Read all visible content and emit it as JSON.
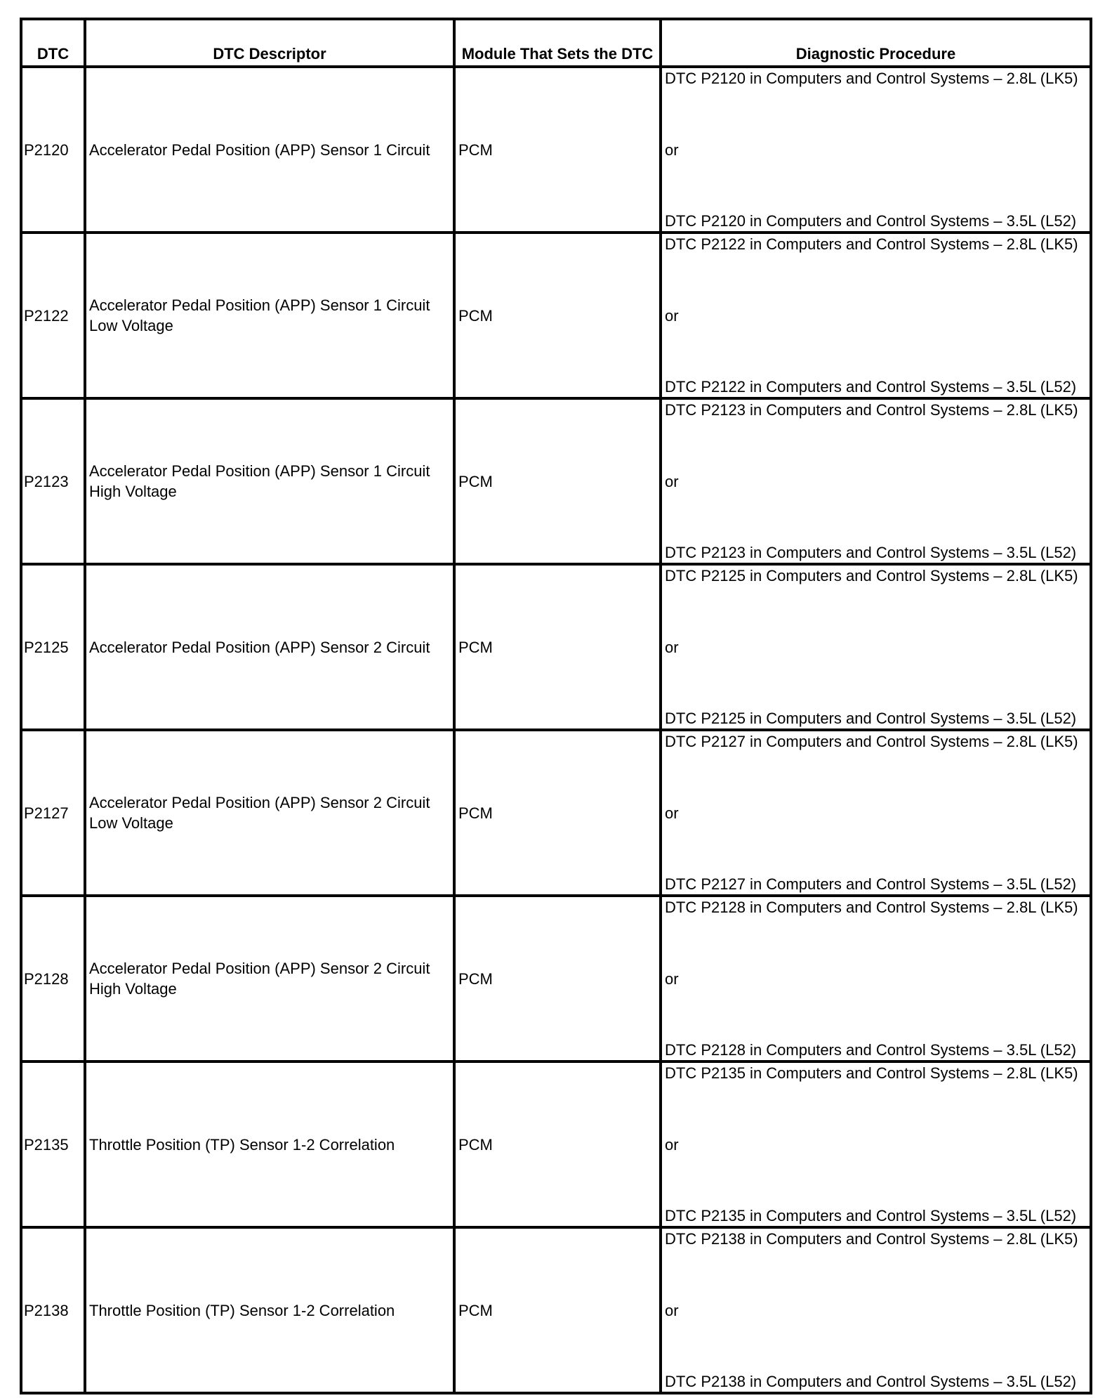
{
  "headers": [
    "DTC",
    "DTC Descriptor",
    "Module That Sets the DTC",
    "Diagnostic Procedure"
  ],
  "rows": [
    {
      "dtc": "P2120",
      "descriptor": "Accelerator Pedal Position (APP) Sensor 1 Circuit",
      "module": "PCM",
      "proc1": "DTC P2120 in Computers and Control Systems – 2.8L (LK5)",
      "or": "or",
      "proc2": "DTC P2120 in Computers and Control Systems – 3.5L (L52)"
    },
    {
      "dtc": "P2122",
      "descriptor": "Accelerator Pedal Position (APP) Sensor 1 Circuit Low Voltage",
      "module": "PCM",
      "proc1": "DTC P2122 in Computers and Control Systems – 2.8L (LK5)",
      "or": "or",
      "proc2": "DTC P2122 in Computers and Control Systems – 3.5L (L52)"
    },
    {
      "dtc": "P2123",
      "descriptor": "Accelerator Pedal Position (APP) Sensor 1 Circuit High Voltage",
      "module": "PCM",
      "proc1": "DTC P2123 in Computers and Control Systems – 2.8L (LK5)",
      "or": "or",
      "proc2": "DTC P2123 in Computers and Control Systems – 3.5L (L52)"
    },
    {
      "dtc": "P2125",
      "descriptor": "Accelerator Pedal Position (APP) Sensor 2 Circuit",
      "module": "PCM",
      "proc1": "DTC P2125 in Computers and Control Systems – 2.8L (LK5)",
      "or": "or",
      "proc2": "DTC P2125 in Computers and Control Systems – 3.5L (L52)"
    },
    {
      "dtc": "P2127",
      "descriptor": "Accelerator Pedal Position (APP) Sensor 2 Circuit Low Voltage",
      "module": "PCM",
      "proc1": "DTC P2127 in Computers and Control Systems – 2.8L (LK5)",
      "or": "or",
      "proc2": "DTC P2127 in Computers and Control Systems – 3.5L (L52)"
    },
    {
      "dtc": "P2128",
      "descriptor": "Accelerator Pedal Position (APP) Sensor 2 Circuit High Voltage",
      "module": "PCM",
      "proc1": "DTC P2128 in Computers and Control Systems – 2.8L (LK5)",
      "or": "or",
      "proc2": "DTC P2128 in Computers and Control Systems – 3.5L (L52)"
    },
    {
      "dtc": "P2135",
      "descriptor": "Throttle Position (TP) Sensor 1-2 Correlation",
      "module": "PCM",
      "proc1": "DTC P2135 in Computers and Control Systems – 2.8L (LK5)",
      "or": "or",
      "proc2": "DTC P2135 in Computers and Control Systems – 3.5L (L52)"
    },
    {
      "dtc": "P2138",
      "descriptor": "Throttle Position (TP) Sensor 1-2 Correlation",
      "module": "PCM",
      "proc1": "DTC P2138 in Computers and Control Systems – 2.8L (LK5)",
      "or": "or",
      "proc2": "DTC P2138 in Computers and Control Systems – 3.5L (L52)"
    }
  ]
}
